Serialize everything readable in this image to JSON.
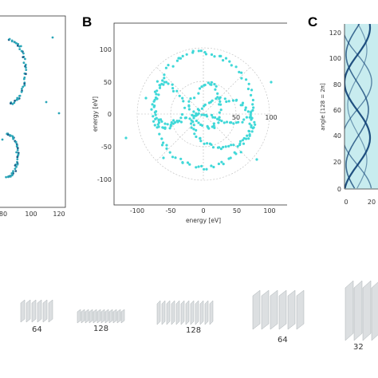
{
  "panels": {
    "a": {
      "x_tick_labels": [
        "80",
        "100",
        "120"
      ],
      "colors": {
        "point": "#2aa6b8",
        "dark_point": "#1f5f8a"
      }
    },
    "b": {
      "letter": "B",
      "xlabel": "energy [eV]",
      "ylabel": "energy [eV]",
      "x_tick_labels": [
        "-100",
        "-50",
        "0",
        "50",
        "100"
      ],
      "y_tick_labels": [
        "100",
        "50",
        "0",
        "-50",
        "-100"
      ],
      "ring_labels": [
        "50",
        "100"
      ],
      "colors": {
        "point": "#40d8d8",
        "grid": "#bbbbbb"
      }
    },
    "c": {
      "letter": "C",
      "ylabel": "angle [128 = 2π]",
      "y_tick_labels": [
        "120",
        "100",
        "80",
        "60",
        "40",
        "20",
        "0"
      ],
      "x_tick_labels": [
        "0",
        "20"
      ],
      "colors": {
        "background": "#c8ecef",
        "curve": "#0d3f73"
      }
    }
  },
  "chart_data": [
    {
      "type": "scatter",
      "panel": "B",
      "xlabel": "energy [eV]",
      "ylabel": "energy [eV]",
      "xlim": [
        -125,
        125
      ],
      "ylim": [
        -125,
        125
      ],
      "grid": "polar"
    },
    {
      "type": "heatmap",
      "panel": "C",
      "ylabel": "angle [128 = 2π]",
      "ylim": [
        0,
        128
      ]
    }
  ],
  "network": {
    "layers": [
      {
        "label": "64"
      },
      {
        "label": "128"
      },
      {
        "label": "128"
      },
      {
        "label": "64"
      },
      {
        "label": "32"
      }
    ],
    "colors": {
      "plane": "#d8dcde",
      "plane_dark": "#a9b0b3"
    }
  }
}
